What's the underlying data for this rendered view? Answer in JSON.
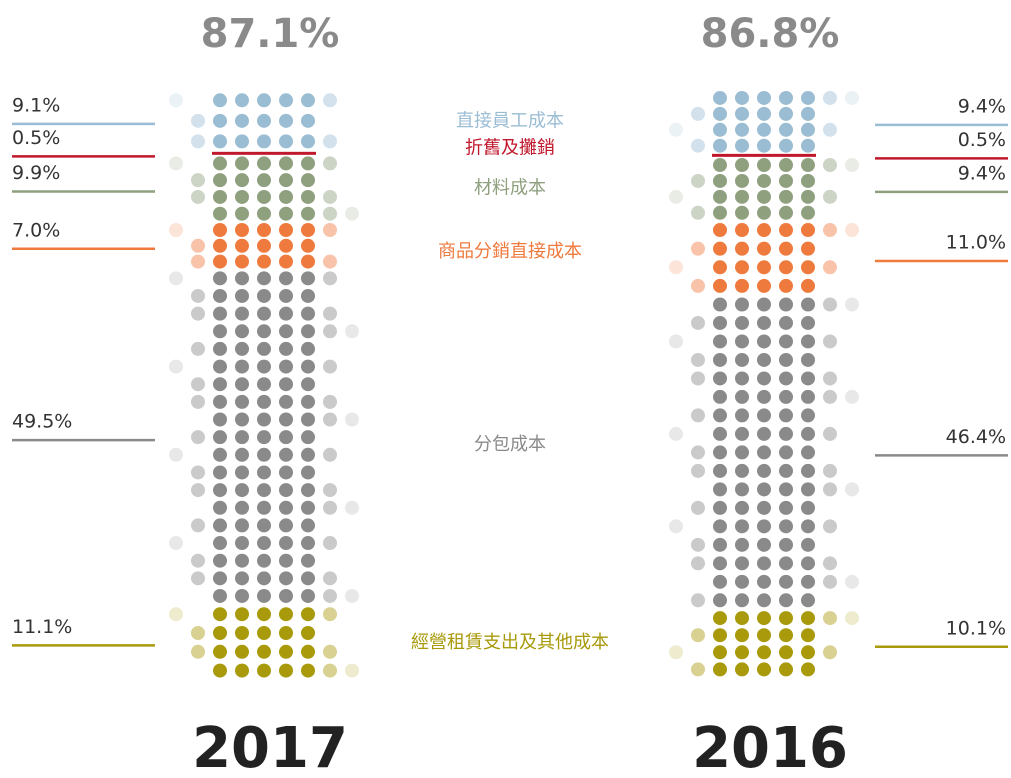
{
  "chart_data": {
    "type": "dotcolumn",
    "categories": [
      "直接員工成本",
      "折舊及攤銷",
      "材料成本",
      "商品分銷直接成本",
      "分包成本",
      "經營租賃支出及其他成本"
    ],
    "colors": [
      "#9bbdd4",
      "#c0182c",
      "#8fa07f",
      "#ef7a3e",
      "#8a8a8a",
      "#a89a0a"
    ],
    "series": [
      {
        "name": "2017",
        "total": 87.1,
        "total_label": "87.1%",
        "values": [
          9.1,
          0.5,
          9.9,
          7.0,
          49.5,
          11.1
        ],
        "value_labels": [
          "9.1%",
          "0.5%",
          "9.9%",
          "7.0%",
          "49.5%",
          "11.1%"
        ]
      },
      {
        "name": "2016",
        "total": 86.8,
        "total_label": "86.8%",
        "values": [
          9.4,
          0.5,
          9.4,
          11.0,
          46.4,
          10.1
        ],
        "value_labels": [
          "9.4%",
          "0.5%",
          "9.4%",
          "11.0%",
          "46.4%",
          "10.1%"
        ]
      }
    ]
  }
}
